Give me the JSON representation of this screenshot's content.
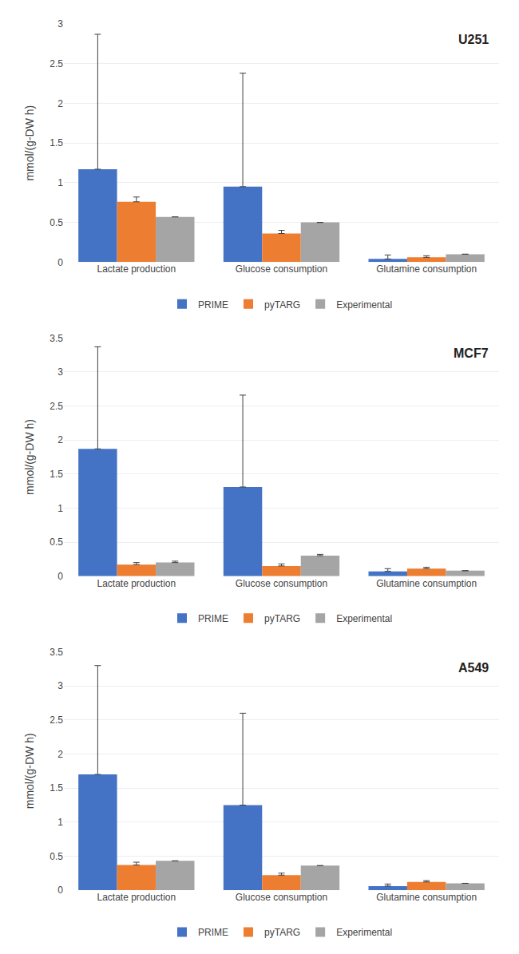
{
  "chart_data": [
    {
      "type": "bar",
      "title": "U251",
      "categories": [
        "Lactate production",
        "Glucose consumption",
        "Glutamine consumption"
      ],
      "ylabel": "mmol/(g-DW h)",
      "ylim": [
        0,
        3.0
      ],
      "yticks": [
        0,
        0.5,
        1,
        1.5,
        2,
        2.5,
        3
      ],
      "grid": true,
      "legend": "bottom",
      "series": [
        {
          "name": "PRIME",
          "color": "#4472C4",
          "values": [
            1.17,
            0.95,
            0.04
          ],
          "errors": [
            1.7,
            1.43,
            0.05
          ]
        },
        {
          "name": "pyTARG",
          "color": "#ED7D31",
          "values": [
            0.76,
            0.36,
            0.06
          ],
          "errors": [
            0.06,
            0.04,
            0.02
          ]
        },
        {
          "name": "Experimental",
          "color": "#A5A5A5",
          "values": [
            0.57,
            0.5,
            0.1
          ],
          "errors": [
            0.0,
            0.0,
            0.0
          ]
        }
      ]
    },
    {
      "type": "bar",
      "title": "MCF7",
      "categories": [
        "Lactate production",
        "Glucose consumption",
        "Glutamine consumption"
      ],
      "ylabel": "mmol/(g-DW h)",
      "ylim": [
        0,
        3.5
      ],
      "yticks": [
        0,
        0.5,
        1,
        1.5,
        2,
        2.5,
        3,
        3.5
      ],
      "grid": true,
      "legend": "bottom",
      "series": [
        {
          "name": "PRIME",
          "color": "#4472C4",
          "values": [
            1.87,
            1.31,
            0.07
          ],
          "errors": [
            1.5,
            1.35,
            0.04
          ]
        },
        {
          "name": "pyTARG",
          "color": "#ED7D31",
          "values": [
            0.17,
            0.15,
            0.11
          ],
          "errors": [
            0.03,
            0.03,
            0.02
          ]
        },
        {
          "name": "Experimental",
          "color": "#A5A5A5",
          "values": [
            0.2,
            0.3,
            0.08
          ],
          "errors": [
            0.02,
            0.02,
            0.0
          ]
        }
      ]
    },
    {
      "type": "bar",
      "title": "A549",
      "categories": [
        "Lactate production",
        "Glucose consumption",
        "Glutamine consumption"
      ],
      "ylabel": "mmol/(g-DW h)",
      "ylim": [
        0,
        3.5
      ],
      "yticks": [
        0,
        0.5,
        1,
        1.5,
        2,
        2.5,
        3,
        3.5
      ],
      "grid": true,
      "legend": "bottom",
      "series": [
        {
          "name": "PRIME",
          "color": "#4472C4",
          "values": [
            1.7,
            1.25,
            0.06
          ],
          "errors": [
            1.6,
            1.35,
            0.03
          ]
        },
        {
          "name": "pyTARG",
          "color": "#ED7D31",
          "values": [
            0.37,
            0.22,
            0.12
          ],
          "errors": [
            0.04,
            0.03,
            0.02
          ]
        },
        {
          "name": "Experimental",
          "color": "#A5A5A5",
          "values": [
            0.43,
            0.36,
            0.1
          ],
          "errors": [
            0.0,
            0.0,
            0.0
          ]
        }
      ]
    }
  ]
}
